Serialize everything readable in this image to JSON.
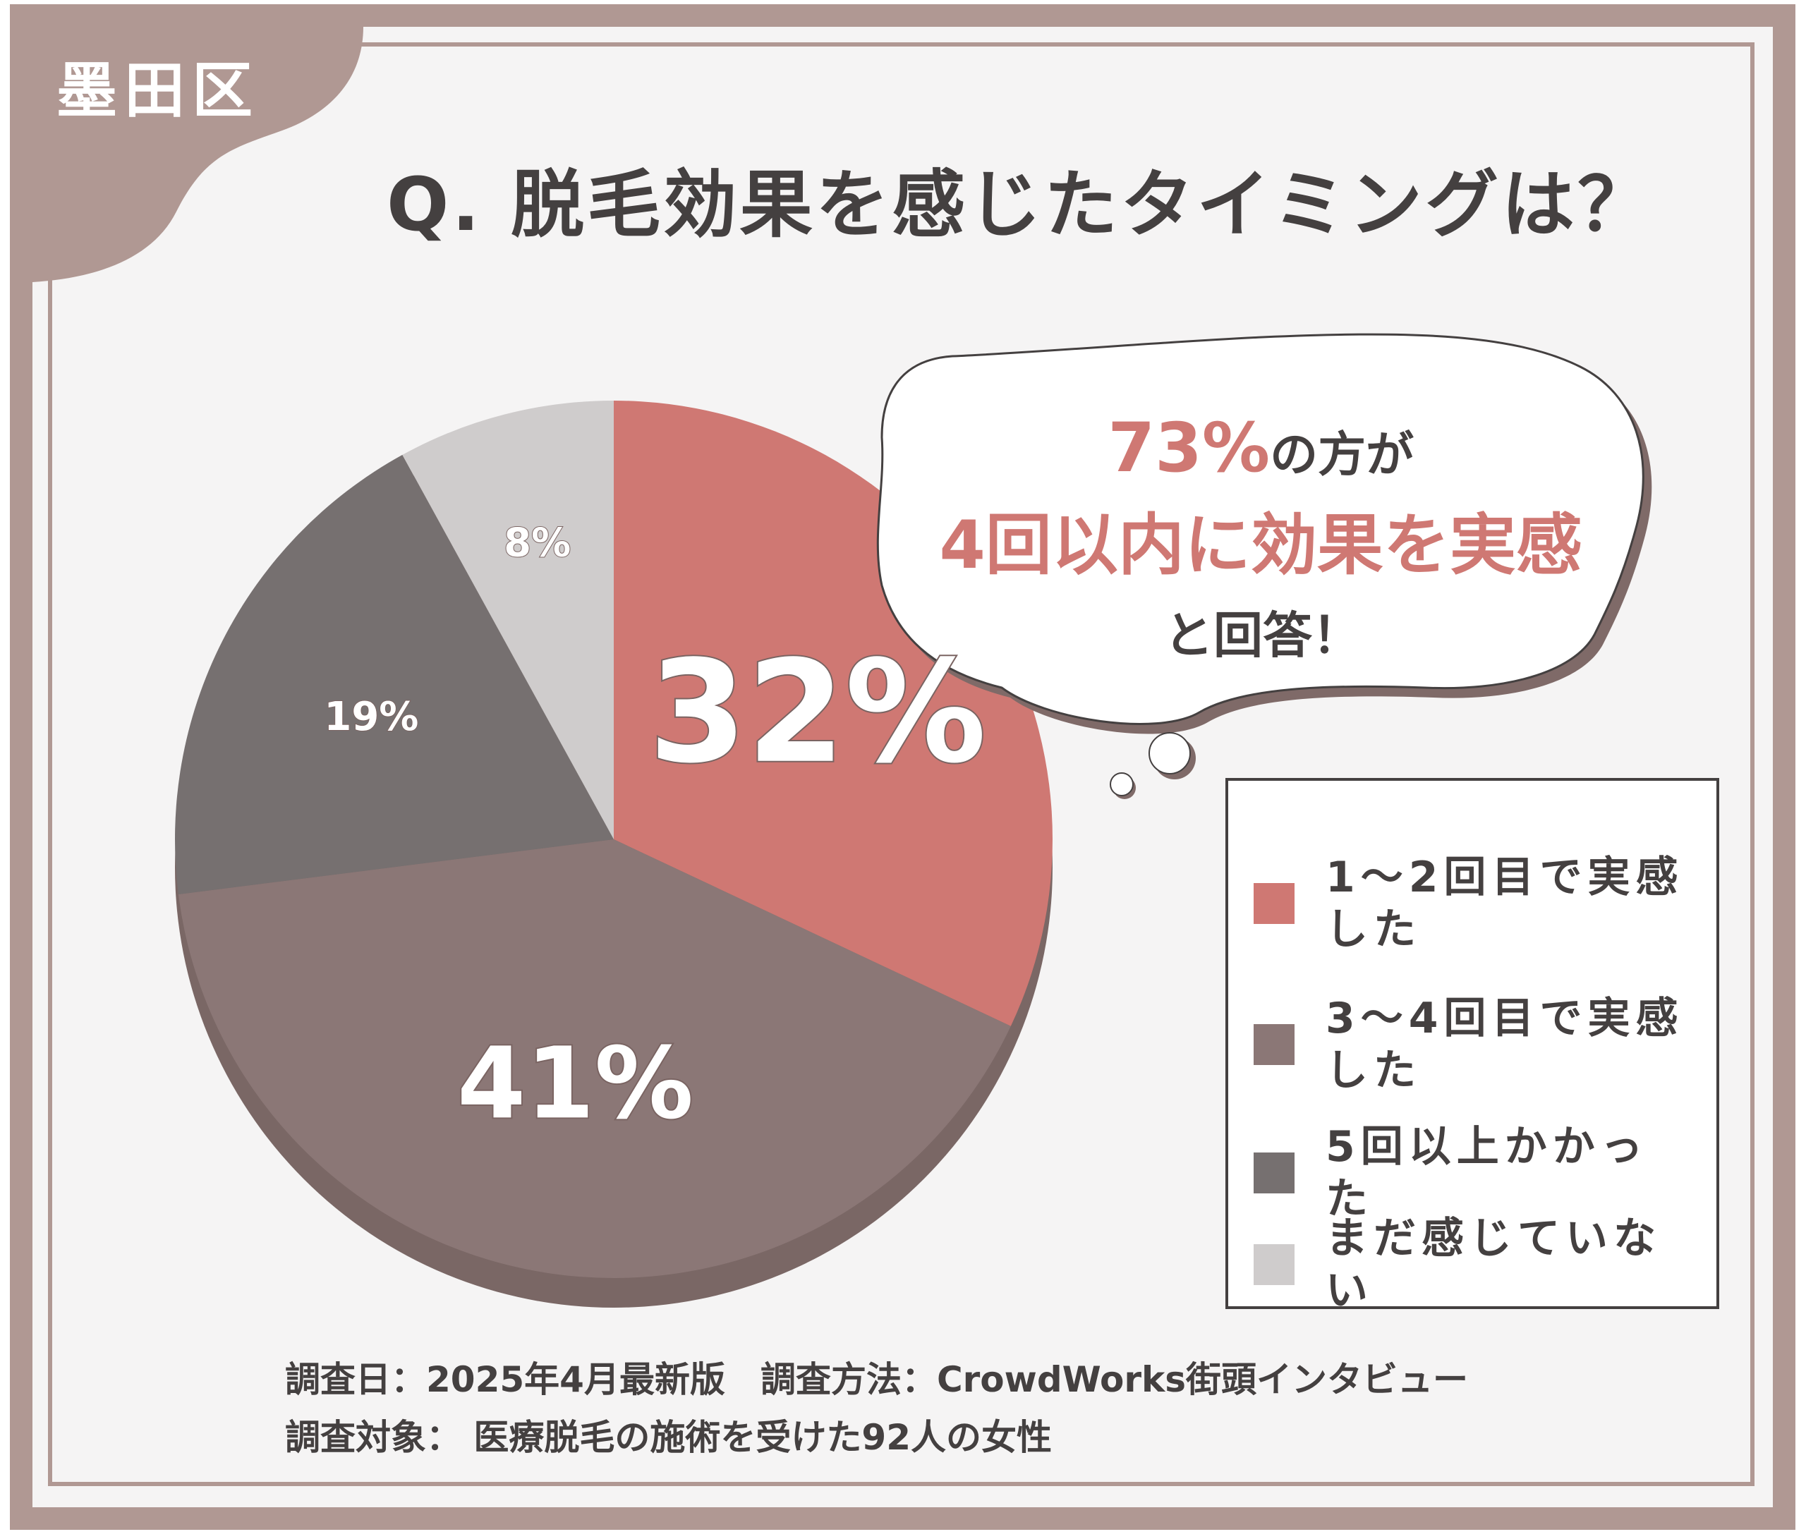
{
  "ward": "墨田区",
  "question": "Q. 脱毛効果を感じたタイミングは？",
  "callout": {
    "highlight_value": "73%",
    "line1_rest": "の方が",
    "line2": "4回以内に効果を実感",
    "line3": "と回答！"
  },
  "colors": {
    "frame": "#b09893",
    "text": "#444040",
    "accent": "#cf7873"
  },
  "chart_data": {
    "type": "pie",
    "title": "Q. 脱毛効果を感じたタイミングは？",
    "slices": [
      {
        "label": "1～2回目で実感した",
        "value": 32,
        "value_label": "32%",
        "color": "#cf7873"
      },
      {
        "label": "3～4回目で実感した",
        "value": 41,
        "value_label": "41%",
        "color": "#8b7776"
      },
      {
        "label": "5回以上かかった",
        "value": 19,
        "value_label": "19%",
        "color": "#767070"
      },
      {
        "label": "まだ感じていない",
        "value": 8,
        "value_label": "8%",
        "color": "#cfcccc"
      }
    ],
    "start_angle": "12 o'clock",
    "direction": "clockwise",
    "legend_position": "right"
  },
  "footer": {
    "line1": "調査日：2025年4月最新版　調査方法：CrowdWorks街頭インタビュー",
    "line2": "調査対象： 医療脱毛の施術を受けた92人の女性"
  }
}
